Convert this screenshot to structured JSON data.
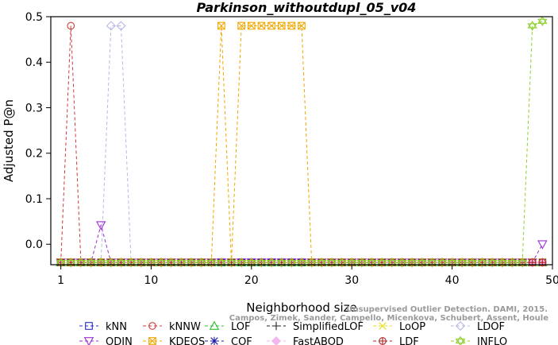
{
  "chart_data": {
    "type": "line",
    "title": "Parkinson_withoutdupl_05_v04",
    "xlabel": "Neighborhood size",
    "ylabel": "Adjusted P@n",
    "xlim": [
      0,
      50
    ],
    "ylim": [
      -0.045,
      0.5
    ],
    "xticks": [
      1,
      10,
      20,
      30,
      40,
      50
    ],
    "xtick_labels": [
      "1",
      "10",
      "20",
      "30",
      "40",
      "50"
    ],
    "yticks": [
      0.0,
      0.1,
      0.2,
      0.3,
      0.4,
      0.5
    ],
    "ytick_labels": [
      "0.0",
      "0.1",
      "0.2",
      "0.3",
      "0.4",
      "0.5"
    ],
    "grid": false,
    "legend_position": "bottom",
    "credit_line1": "Unsupervised Outlier Detection. DAMI, 2015.",
    "credit_line2": "Campos, Zimek, Sander, Campello, Micenkova, Schubert, Assent, Houle",
    "baseline": -0.04,
    "x": [
      1,
      2,
      3,
      4,
      5,
      6,
      7,
      8,
      9,
      10,
      11,
      12,
      13,
      14,
      15,
      16,
      17,
      18,
      19,
      20,
      21,
      22,
      23,
      24,
      25,
      26,
      27,
      28,
      29,
      30,
      31,
      32,
      33,
      34,
      35,
      36,
      37,
      38,
      39,
      40,
      41,
      42,
      43,
      44,
      45,
      46,
      47,
      48,
      49
    ],
    "series": [
      {
        "name": "kNN",
        "color": "#2b2bd6",
        "marker": "square",
        "values": {}
      },
      {
        "name": "kNNW",
        "color": "#d13a3a",
        "marker": "circle",
        "values": {
          "2": 0.48
        }
      },
      {
        "name": "LOF",
        "color": "#2fc22f",
        "marker": "triangle-up",
        "values": {}
      },
      {
        "name": "SimplifiedLOF",
        "color": "#222222",
        "marker": "plus",
        "values": {}
      },
      {
        "name": "LoOP",
        "color": "#e8e020",
        "marker": "x",
        "values": {}
      },
      {
        "name": "LDOF",
        "color": "#b8b8e8",
        "marker": "diamond",
        "values": {
          "6": 0.48,
          "7": 0.48
        }
      },
      {
        "name": "ODIN",
        "color": "#9b30d0",
        "marker": "triangle-down",
        "values": {
          "5": 0.042,
          "49": 0.0
        }
      },
      {
        "name": "KDEOS",
        "color": "#f0a800",
        "marker": "square-x",
        "values": {
          "17": 0.48,
          "19": 0.48,
          "20": 0.48,
          "21": 0.48,
          "22": 0.48,
          "23": 0.48,
          "24": 0.48,
          "25": 0.48
        }
      },
      {
        "name": "COF",
        "color": "#1a1aa0",
        "marker": "star",
        "values": {}
      },
      {
        "name": "FastABOD",
        "color": "#f2b8ee",
        "marker": "diamond-filled",
        "values": {}
      },
      {
        "name": "LDF",
        "color": "#b02020",
        "marker": "circle-plus",
        "values": {}
      },
      {
        "name": "INFLO",
        "color": "#90d030",
        "marker": "star-of-david",
        "values": {
          "48": 0.48,
          "49": 0.49
        }
      }
    ]
  }
}
